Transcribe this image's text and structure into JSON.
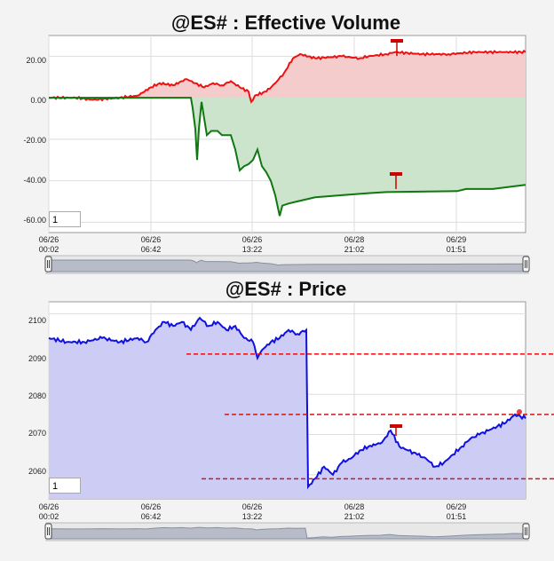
{
  "chart_data": [
    {
      "type": "line",
      "title": "@ES# : Effective Volume",
      "ylim": [
        -65,
        30
      ],
      "y_ticks": [
        "20.00",
        "0.00",
        "-20.00",
        "-40.00",
        "-60.00"
      ],
      "x_ticks": [
        {
          "date": "06/26",
          "time": "00:02"
        },
        {
          "date": "06/26",
          "time": "06:42"
        },
        {
          "date": "06/26",
          "time": "13:22"
        },
        {
          "date": "06/28",
          "time": "21:02"
        },
        {
          "date": "06/29",
          "time": "01:51"
        }
      ],
      "input_value": "1",
      "colors": {
        "red_series": "#ee1111",
        "green_series": "#117711",
        "red_fill": "#f5cccc",
        "green_fill": "#cce3cc"
      },
      "series": [
        {
          "color": "red",
          "values": [
            [
              0,
              0
            ],
            [
              30,
              0
            ],
            [
              50,
              -1
            ],
            [
              80,
              0
            ],
            [
              100,
              1
            ],
            [
              115,
              5
            ],
            [
              125,
              7
            ],
            [
              140,
              6
            ],
            [
              155,
              9
            ],
            [
              165,
              7
            ],
            [
              175,
              5
            ],
            [
              185,
              7
            ],
            [
              195,
              6
            ],
            [
              205,
              8
            ],
            [
              215,
              5
            ],
            [
              225,
              3
            ],
            [
              228,
              -2
            ],
            [
              232,
              1
            ],
            [
              245,
              3
            ],
            [
              255,
              7
            ],
            [
              265,
              12
            ],
            [
              275,
              19
            ],
            [
              283,
              21
            ],
            [
              300,
              19
            ],
            [
              330,
              20
            ],
            [
              350,
              19
            ],
            [
              360,
              20
            ],
            [
              380,
              21
            ],
            [
              390,
              22
            ],
            [
              420,
              21
            ],
            [
              450,
              21
            ],
            [
              480,
              22
            ],
            [
              510,
              22
            ],
            [
              537,
              22
            ]
          ]
        },
        {
          "color": "green",
          "values": [
            [
              0,
              0
            ],
            [
              160,
              0
            ],
            [
              162,
              -5
            ],
            [
              165,
              -15
            ],
            [
              167,
              -30
            ],
            [
              169,
              -15
            ],
            [
              172,
              -2
            ],
            [
              175,
              -10
            ],
            [
              178,
              -18
            ],
            [
              183,
              -16
            ],
            [
              190,
              -16
            ],
            [
              195,
              -18
            ],
            [
              205,
              -18
            ],
            [
              210,
              -25
            ],
            [
              215,
              -35
            ],
            [
              220,
              -33
            ],
            [
              225,
              -32
            ],
            [
              230,
              -30
            ],
            [
              235,
              -25
            ],
            [
              240,
              -33
            ],
            [
              245,
              -36
            ],
            [
              250,
              -40
            ],
            [
              255,
              -47
            ],
            [
              260,
              -57
            ],
            [
              263,
              -52
            ],
            [
              270,
              -51
            ],
            [
              280,
              -50
            ],
            [
              300,
              -48
            ],
            [
              330,
              -47
            ],
            [
              360,
              -46
            ],
            [
              380,
              -45.5
            ],
            [
              460,
              -45
            ],
            [
              470,
              -44
            ],
            [
              500,
              -44
            ],
            [
              537,
              -42
            ]
          ]
        }
      ]
    },
    {
      "type": "area",
      "title": "@ES# : Price",
      "ylim": [
        2054,
        2103
      ],
      "y_ticks": [
        "2100",
        "2090",
        "2080",
        "2070",
        "2060"
      ],
      "x_ticks": [
        {
          "date": "06/26",
          "time": "00:02"
        },
        {
          "date": "06/26",
          "time": "06:42"
        },
        {
          "date": "06/26",
          "time": "13:22"
        },
        {
          "date": "06/28",
          "time": "21:02"
        },
        {
          "date": "06/29",
          "time": "01:51"
        }
      ],
      "input_value": "1",
      "colors": {
        "price_line": "#1111dd",
        "price_fill": "#ccccf5",
        "level_lines": "#dd1111"
      },
      "series": [
        {
          "color": "blue",
          "values": [
            [
              0,
              2094
            ],
            [
              20,
              2093
            ],
            [
              40,
              2093
            ],
            [
              60,
              2094
            ],
            [
              80,
              2093
            ],
            [
              100,
              2094
            ],
            [
              110,
              2093
            ],
            [
              120,
              2096
            ],
            [
              130,
              2098
            ],
            [
              140,
              2097
            ],
            [
              150,
              2098
            ],
            [
              160,
              2096
            ],
            [
              170,
              2099
            ],
            [
              180,
              2097
            ],
            [
              190,
              2098
            ],
            [
              200,
              2096
            ],
            [
              210,
              2097
            ],
            [
              220,
              2094
            ],
            [
              230,
              2093
            ],
            [
              235,
              2089
            ],
            [
              240,
              2091
            ],
            [
              250,
              2093
            ],
            [
              260,
              2094
            ],
            [
              270,
              2096
            ],
            [
              280,
              2095
            ],
            [
              290,
              2096
            ],
            [
              292,
              2057
            ],
            [
              300,
              2059
            ],
            [
              310,
              2062
            ],
            [
              320,
              2060
            ],
            [
              330,
              2063
            ],
            [
              340,
              2064
            ],
            [
              350,
              2066
            ],
            [
              360,
              2067
            ],
            [
              375,
              2068
            ],
            [
              385,
              2071
            ],
            [
              395,
              2067
            ],
            [
              405,
              2066
            ],
            [
              415,
              2065
            ],
            [
              425,
              2064
            ],
            [
              435,
              2062
            ],
            [
              445,
              2063
            ],
            [
              455,
              2065
            ],
            [
              465,
              2067
            ],
            [
              475,
              2069
            ],
            [
              485,
              2070
            ],
            [
              495,
              2071
            ],
            [
              505,
              2072
            ],
            [
              515,
              2073
            ],
            [
              525,
              2075
            ],
            [
              537,
              2074
            ]
          ]
        }
      ],
      "levels": [
        {
          "value": 2090,
          "x_start": 155
        },
        {
          "value": 2075,
          "x_start": 198
        },
        {
          "value": 2059,
          "x_start": 172
        }
      ]
    }
  ]
}
